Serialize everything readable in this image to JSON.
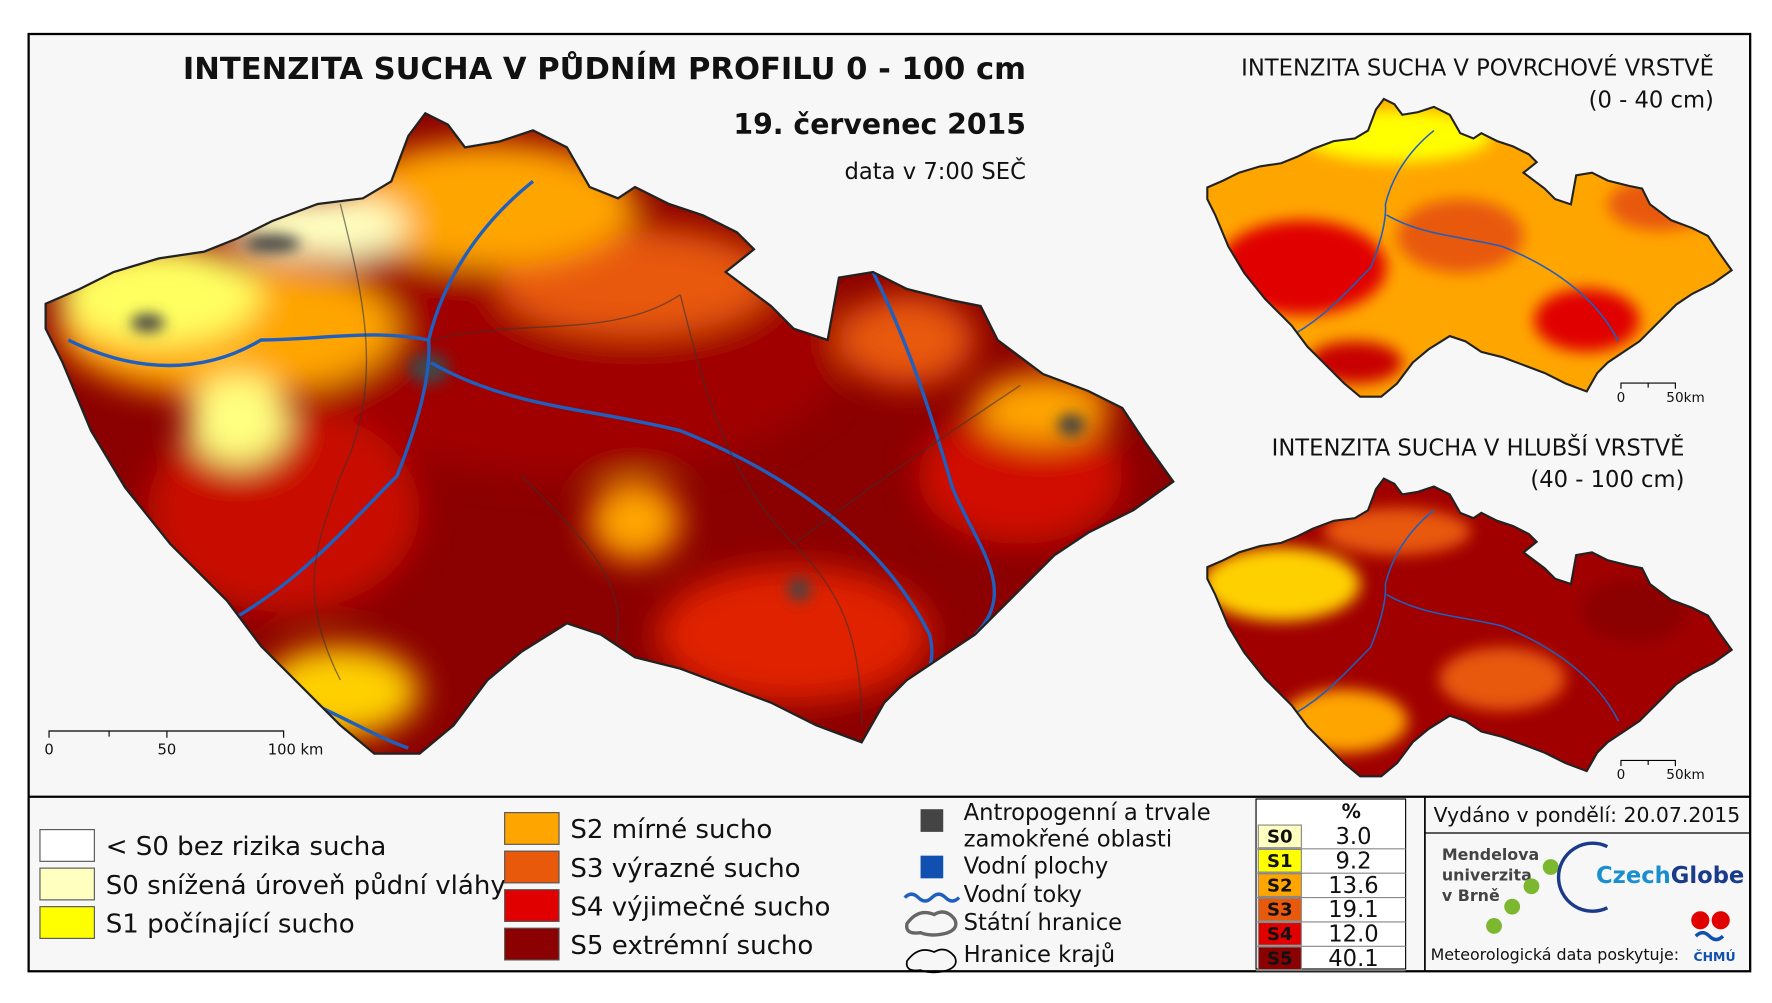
{
  "main_map": {
    "title": "INTENZITA SUCHA V PŮDNÍM PROFILU 0 - 100 cm",
    "date": "19. červenec 2015",
    "time": "data v 7:00 SEČ",
    "scale": [
      "0",
      "50",
      "100 km"
    ]
  },
  "inset_top": {
    "title": "INTENZITA SUCHA V POVRCHOVÉ VRSTVĚ",
    "subtitle": "(0 - 40 cm)",
    "scale": [
      "0",
      "50km"
    ]
  },
  "inset_bottom": {
    "title": "INTENZITA SUCHA V HLUBŠÍ VRSTVĚ",
    "subtitle": "(40 - 100 cm)",
    "scale": [
      "0",
      "50km"
    ]
  },
  "legend": {
    "classes": [
      {
        "label": "< S0 bez rizika sucha",
        "color": "#ffffff"
      },
      {
        "label": "S0 snížená úroveň půdní vláhy",
        "color": "#ffffc0"
      },
      {
        "label": "S1 počínající sucho",
        "color": "#ffff00"
      },
      {
        "label": "S2 mírné sucho",
        "color": "#ffa500"
      },
      {
        "label": "S3 výrazné sucho",
        "color": "#e8590c"
      },
      {
        "label": "S4 výjimečné sucho",
        "color": "#e00000"
      },
      {
        "label": "S5 extrémní sucho",
        "color": "#8b0000"
      }
    ],
    "layers": [
      "Antropogenní a trvale",
      "zamokřené oblasti",
      "Vodní plochy",
      "Vodní toky",
      "Státní hranice",
      "Hranice krajů"
    ]
  },
  "table": {
    "header": "%",
    "rows": [
      [
        "S0",
        "3.0"
      ],
      [
        "S1",
        "9.2"
      ],
      [
        "S2",
        "13.6"
      ],
      [
        "S3",
        "19.1"
      ],
      [
        "S4",
        "12.0"
      ],
      [
        "S5",
        "40.1"
      ]
    ]
  },
  "issued": "Vydáno v pondělí: 20.07.2015",
  "logos": {
    "mendel": [
      "Mendelova",
      "univerzita",
      "v Brně"
    ],
    "czechglobe": [
      "Czech",
      "Globe"
    ],
    "chmu": "ČHMÚ"
  },
  "data_source": "Meteorologická data poskytuje:"
}
